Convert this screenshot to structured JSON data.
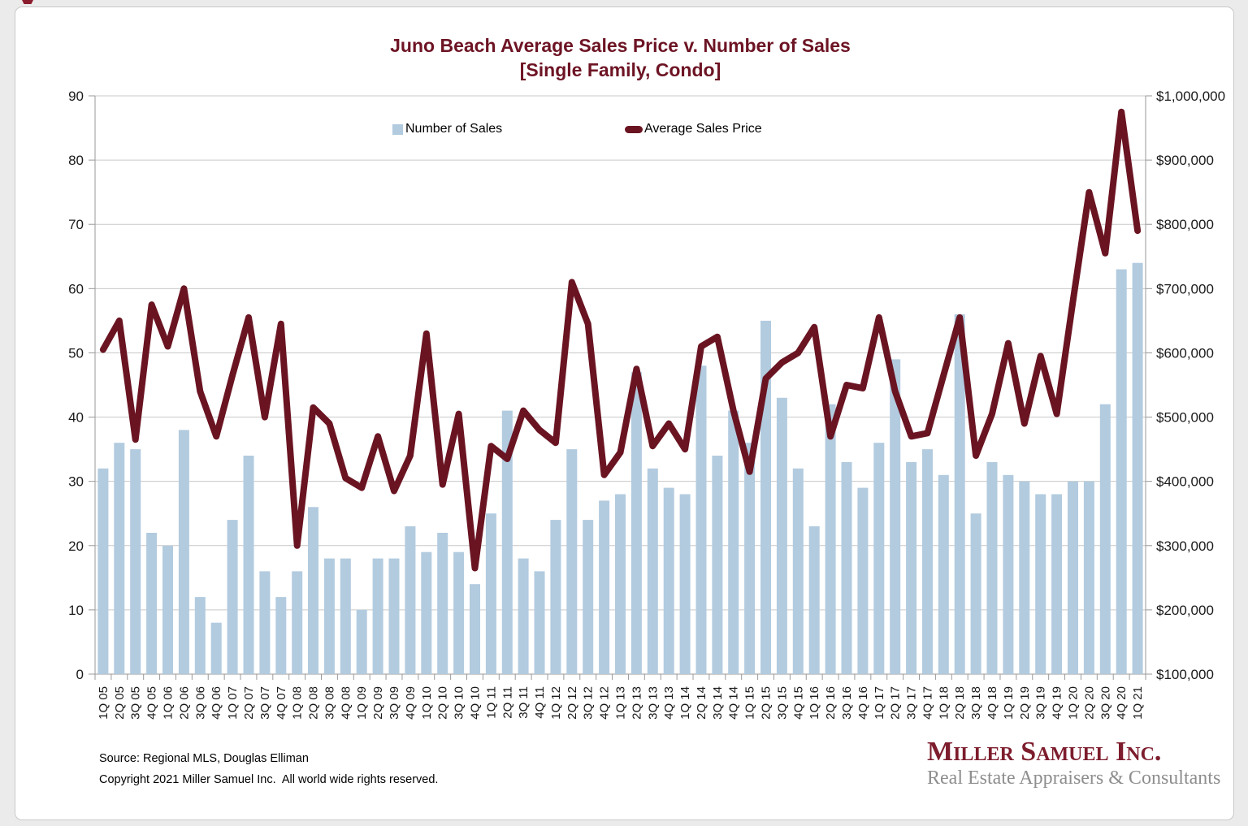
{
  "footer": {
    "source": "Source: Regional MLS, Douglas Elliman",
    "copyright": "Copyright 2021 Miller Samuel Inc.  All world wide rights reserved."
  },
  "logo": {
    "name": "Miller Samuel Inc.",
    "tagline": "Real Estate Appraisers & Consultants",
    "name_color": "#7d1d2d",
    "tagline_color": "#8e8e8e"
  },
  "colors": {
    "bar_fill": "#b2cbdf",
    "line_stroke": "#6a1422",
    "title_text": "#6d1424",
    "gridline": "#c9c9c9",
    "axis_line": "#999999",
    "card_background": "#ffffff",
    "page_background": "#ebebeb"
  },
  "chart_data": {
    "type": "bar+line combo",
    "title": "Juno Beach Average Sales Price v. Number of Sales",
    "subtitle": "[Single Family, Condo]",
    "grid": "horizontal",
    "legend_position": "top-inside",
    "categories": [
      "1Q 05",
      "2Q 05",
      "3Q 05",
      "4Q 05",
      "1Q 06",
      "2Q 06",
      "3Q 06",
      "4Q 06",
      "1Q 07",
      "2Q 07",
      "3Q 07",
      "4Q 07",
      "1Q 08",
      "2Q 08",
      "3Q 08",
      "4Q 08",
      "1Q 09",
      "2Q 09",
      "3Q 09",
      "4Q 09",
      "1Q 10",
      "2Q 10",
      "3Q 10",
      "4Q 10",
      "1Q 11",
      "2Q 11",
      "3Q 11",
      "4Q 11",
      "1Q 12",
      "2Q 12",
      "3Q 12",
      "4Q 12",
      "1Q 13",
      "2Q 13",
      "3Q 13",
      "4Q 13",
      "1Q 14",
      "2Q 14",
      "3Q 14",
      "4Q 14",
      "1Q 15",
      "2Q 15",
      "3Q 15",
      "4Q 15",
      "1Q 16",
      "2Q 16",
      "3Q 16",
      "4Q 16",
      "1Q 17",
      "2Q 17",
      "3Q 17",
      "4Q 17",
      "1Q 18",
      "2Q 18",
      "3Q 18",
      "4Q 18",
      "1Q 19",
      "2Q 19",
      "3Q 19",
      "4Q 19",
      "1Q 20",
      "2Q 20",
      "3Q 20",
      "4Q 20",
      "1Q 21"
    ],
    "series": [
      {
        "name": "Number of Sales",
        "type": "bar",
        "axis": "left",
        "color": "#b2cbdf",
        "values": [
          32,
          36,
          35,
          22,
          20,
          38,
          12,
          8,
          24,
          34,
          16,
          12,
          16,
          26,
          18,
          18,
          10,
          18,
          18,
          23,
          19,
          22,
          19,
          14,
          25,
          41,
          18,
          16,
          24,
          35,
          24,
          27,
          28,
          47,
          32,
          29,
          28,
          48,
          34,
          41,
          36,
          55,
          43,
          32,
          23,
          42,
          33,
          29,
          36,
          49,
          33,
          35,
          31,
          56,
          25,
          33,
          31,
          30,
          28,
          28,
          30,
          30,
          42,
          63,
          64
        ]
      },
      {
        "name": "Average Sales Price",
        "type": "line",
        "axis": "right",
        "color": "#6a1422",
        "values": [
          605000,
          650000,
          465000,
          675000,
          610000,
          700000,
          540000,
          470000,
          565000,
          655000,
          500000,
          645000,
          300000,
          515000,
          490000,
          405000,
          390000,
          470000,
          385000,
          440000,
          630000,
          395000,
          505000,
          265000,
          455000,
          435000,
          510000,
          480000,
          460000,
          710000,
          645000,
          410000,
          445000,
          575000,
          455000,
          490000,
          450000,
          610000,
          625000,
          510000,
          415000,
          560000,
          585000,
          600000,
          640000,
          470000,
          550000,
          545000,
          655000,
          540000,
          470000,
          475000,
          565000,
          655000,
          440000,
          505000,
          615000,
          490000,
          595000,
          505000,
          680000,
          850000,
          755000,
          975000,
          790000
        ]
      }
    ],
    "left_axis": {
      "label": "",
      "min": 0,
      "max": 90,
      "tick_step": 10,
      "tick_labels": [
        "0",
        "10",
        "20",
        "30",
        "40",
        "50",
        "60",
        "70",
        "80",
        "90"
      ]
    },
    "right_axis": {
      "label": "",
      "min": 100000,
      "max": 1000000,
      "tick_step": 100000,
      "tick_labels": [
        "$100,000",
        "$200,000",
        "$300,000",
        "$400,000",
        "$500,000",
        "$600,000",
        "$700,000",
        "$800,000",
        "$900,000",
        "$1,000,000"
      ]
    }
  }
}
